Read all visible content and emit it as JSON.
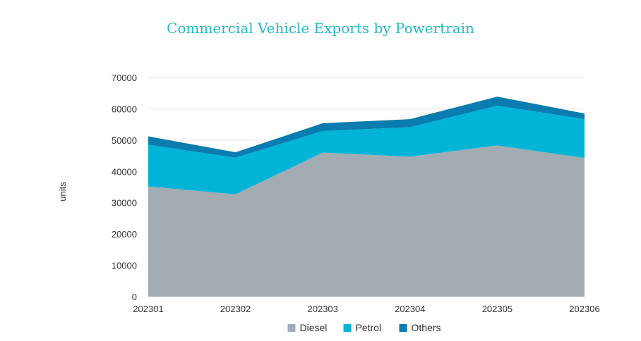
{
  "chart_data": {
    "type": "area",
    "stacked": true,
    "title": "Commercial Vehicle Exports by Powertrain",
    "xlabel": "",
    "ylabel": "units",
    "categories": [
      "202301",
      "202302",
      "202303",
      "202304",
      "202305",
      "202306"
    ],
    "series": [
      {
        "name": "Diesel",
        "color": "#a3acb3",
        "values": [
          35200,
          32700,
          46000,
          44700,
          48300,
          44300
        ]
      },
      {
        "name": "Petrol",
        "color": "#00b4d8",
        "values": [
          13300,
          11700,
          6900,
          9400,
          12700,
          12400
        ]
      },
      {
        "name": "Others",
        "color": "#0a7cb0",
        "values": [
          2700,
          1700,
          2500,
          2600,
          2900,
          1800
        ]
      }
    ],
    "ylim": [
      0,
      70000
    ],
    "yticks": [
      0,
      10000,
      20000,
      30000,
      40000,
      50000,
      60000,
      70000
    ],
    "grid": true,
    "legend_position": "bottom"
  }
}
